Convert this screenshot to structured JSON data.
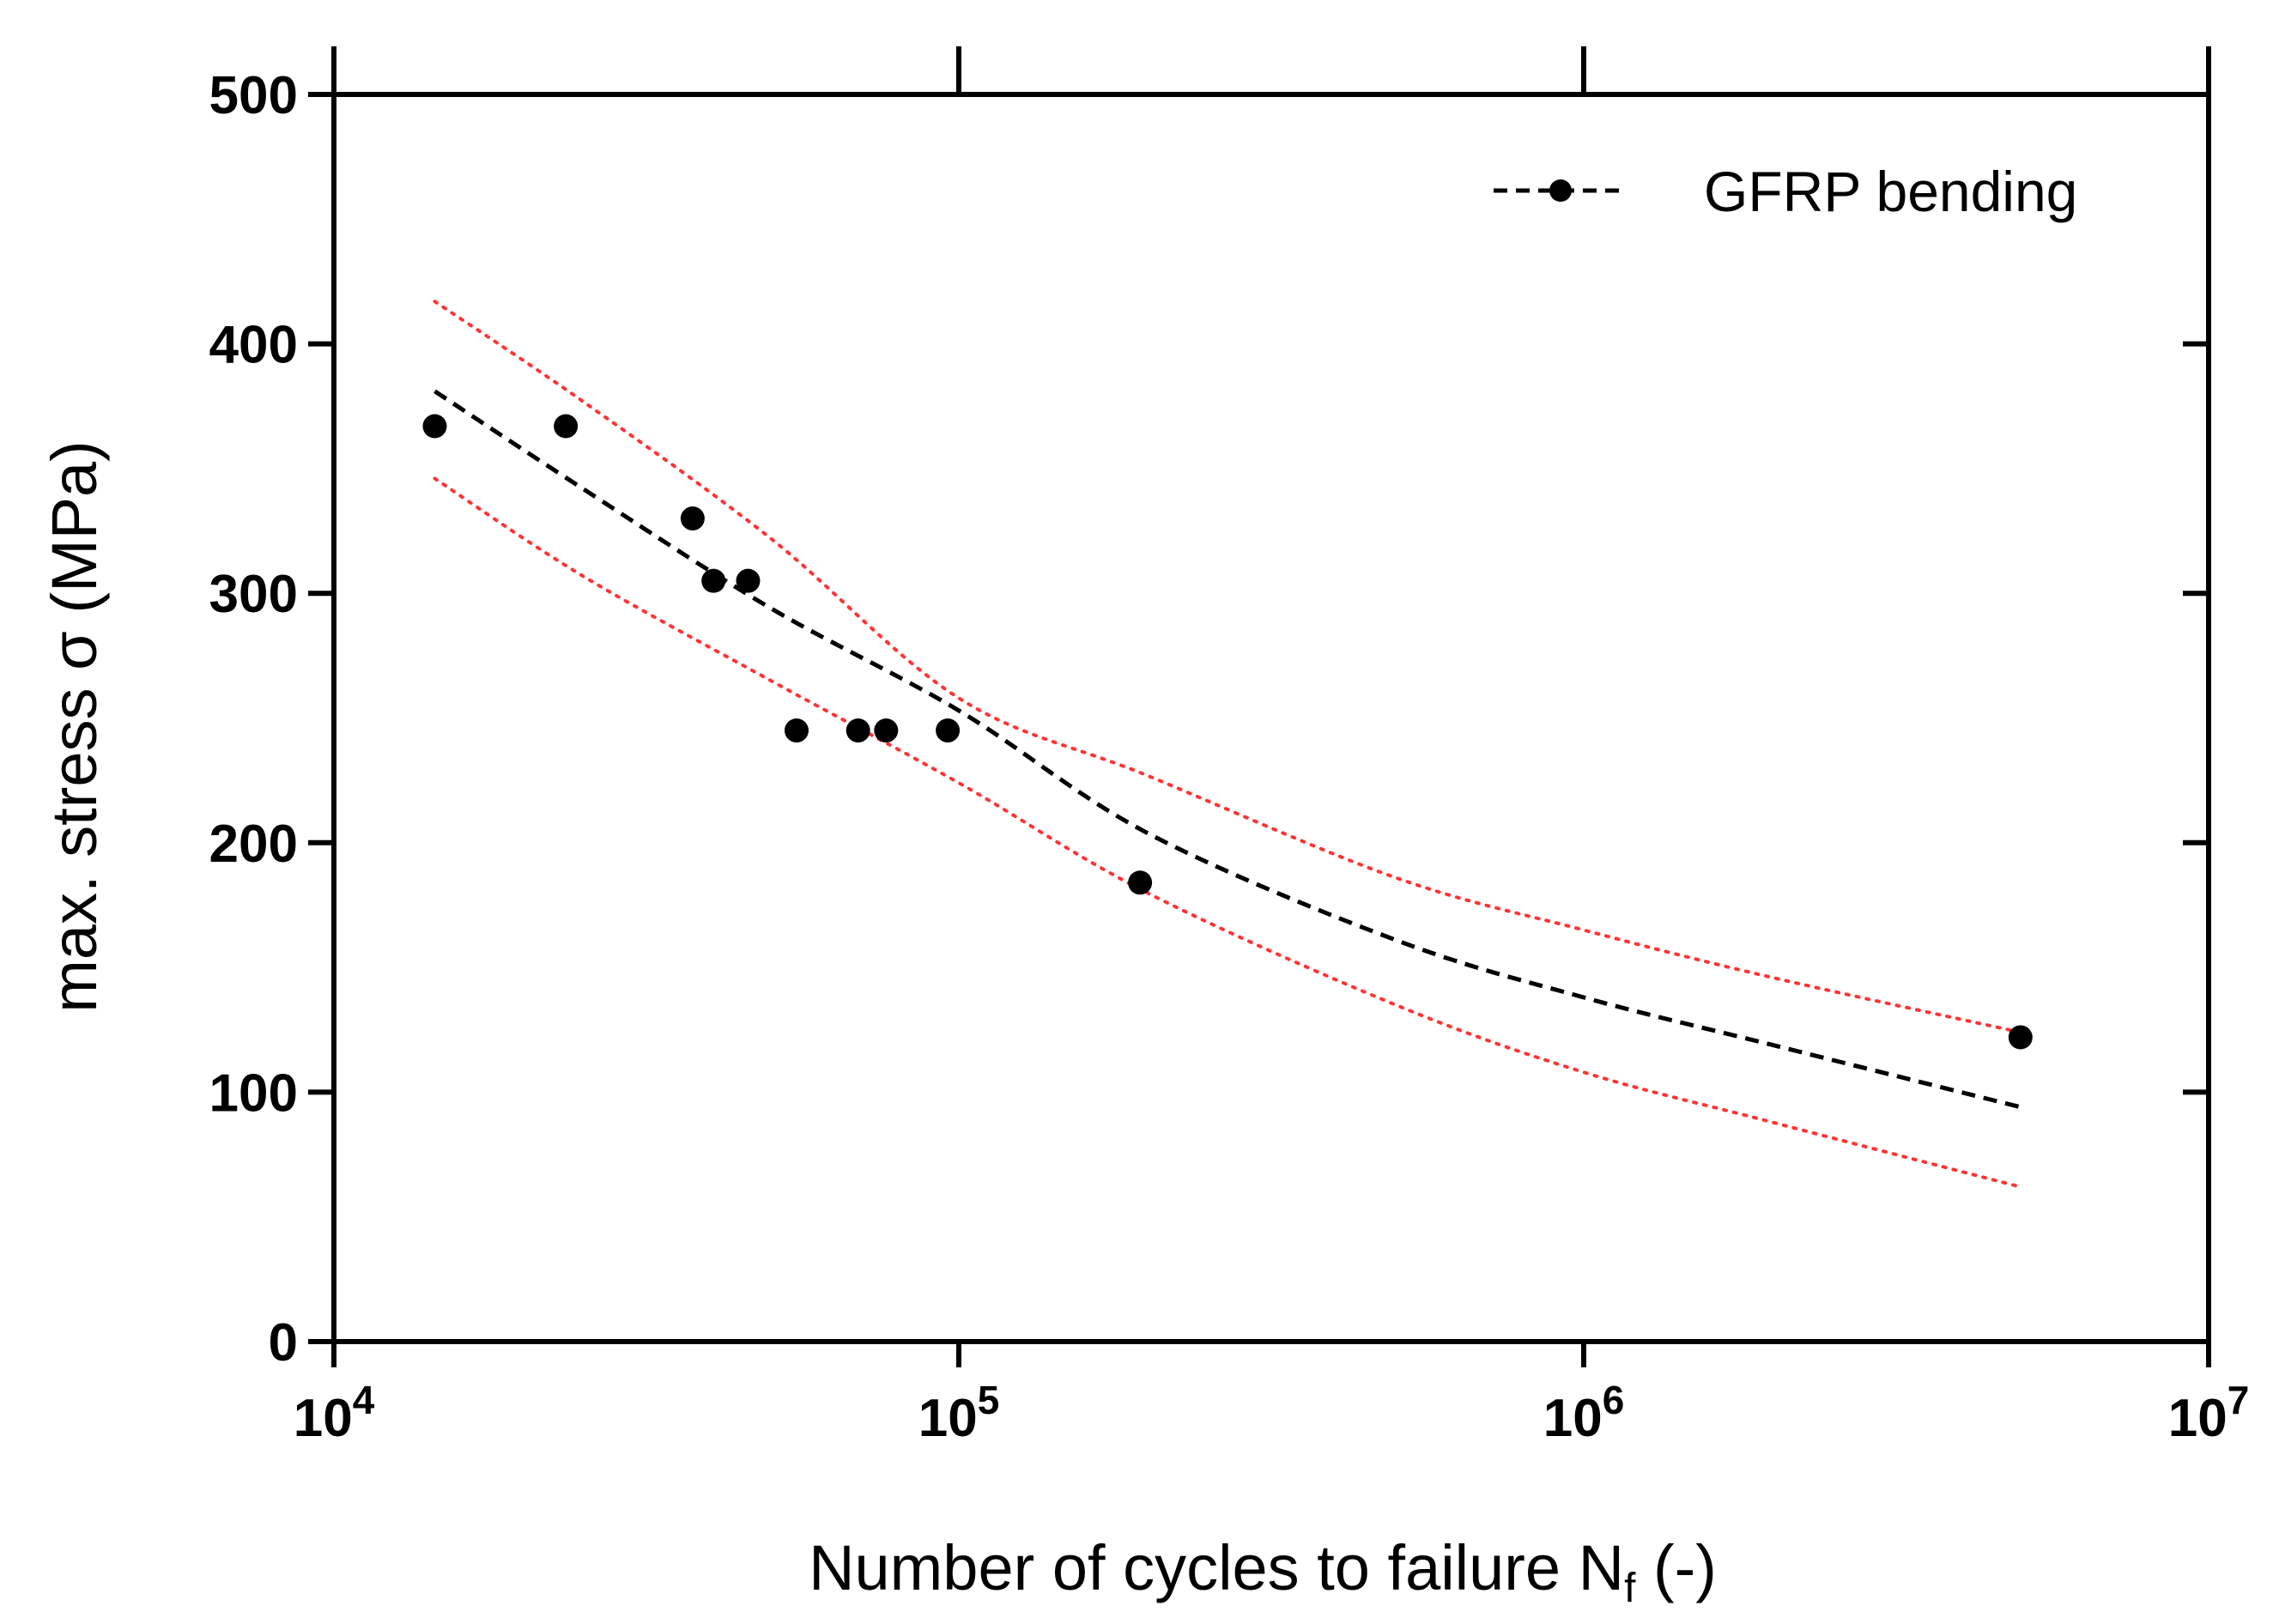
{
  "chart_data": {
    "type": "scatter",
    "xlabel": "Number of cycles to failure N",
    "xlabel_subscript": "f",
    "xlabel_suffix": " (-)",
    "ylabel": "max. stress σ (MPa)",
    "x_scale": "log",
    "xlim": [
      10000,
      10000000
    ],
    "ylim": [
      0,
      500
    ],
    "x_ticks": [
      {
        "base": "10",
        "exp": "4",
        "value": 10000
      },
      {
        "base": "10",
        "exp": "5",
        "value": 100000
      },
      {
        "base": "10",
        "exp": "6",
        "value": 1000000
      },
      {
        "base": "10",
        "exp": "7",
        "value": 10000000
      }
    ],
    "y_ticks": [
      0,
      100,
      200,
      300,
      400,
      500
    ],
    "grid": false,
    "legend": {
      "position": "top-right",
      "label": "GFRP bending"
    },
    "series": [
      {
        "name": "GFRP bending",
        "kind": "points",
        "color": "#000000",
        "points": [
          {
            "x": 14500,
            "y": 367
          },
          {
            "x": 23500,
            "y": 367
          },
          {
            "x": 37500,
            "y": 330
          },
          {
            "x": 40500,
            "y": 305
          },
          {
            "x": 46000,
            "y": 305
          },
          {
            "x": 55000,
            "y": 245
          },
          {
            "x": 69000,
            "y": 245
          },
          {
            "x": 76500,
            "y": 245
          },
          {
            "x": 96000,
            "y": 245
          },
          {
            "x": 195000,
            "y": 184
          },
          {
            "x": 5000000,
            "y": 122
          }
        ]
      },
      {
        "kind": "fit-line",
        "style": "dashed",
        "color": "#000000",
        "x": [
          14500,
          25000,
          50000,
          100000,
          200000,
          500000,
          1000000,
          2000000,
          5000000
        ],
        "y": [
          381,
          342,
          294,
          253,
          204,
          161,
          138,
          119,
          94
        ]
      },
      {
        "kind": "upper-band",
        "style": "dotted",
        "color": "#ff3333",
        "x": [
          14500,
          25000,
          50000,
          100000,
          200000,
          500000,
          1000000,
          2000000,
          5000000
        ],
        "y": [
          417,
          377,
          322,
          258,
          227,
          186,
          165,
          146,
          124
        ]
      },
      {
        "kind": "lower-band",
        "style": "dotted",
        "color": "#ff3333",
        "x": [
          14500,
          25000,
          50000,
          100000,
          200000,
          500000,
          1000000,
          2000000,
          5000000
        ],
        "y": [
          346,
          307,
          265,
          224,
          180,
          135,
          108,
          88,
          62
        ]
      }
    ]
  }
}
